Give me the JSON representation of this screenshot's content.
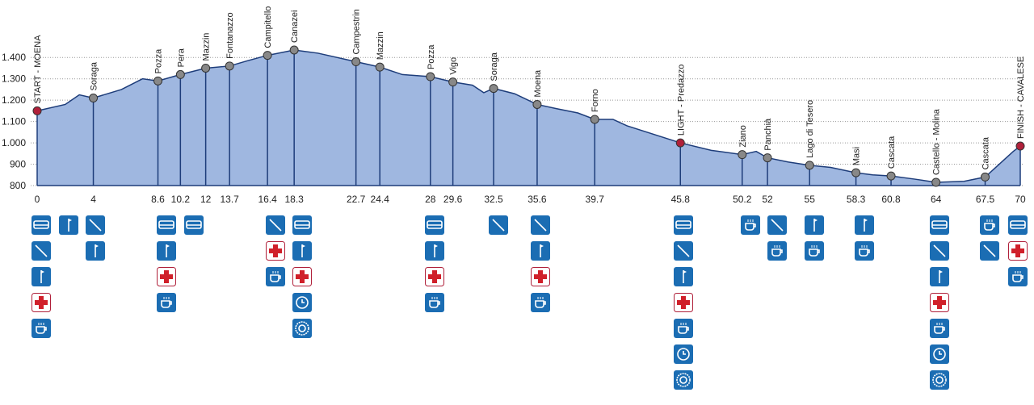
{
  "chart_data": {
    "type": "area",
    "color": "#9fb7e0",
    "line_color": "#1e3d7a",
    "grid": true,
    "xlim": [
      0,
      70
    ],
    "ylim": [
      800,
      1450
    ],
    "yticks": [
      800,
      900,
      {
        "value": 1000,
        "label": "1.000"
      },
      {
        "value": 1100,
        "label": "1.100"
      },
      {
        "value": 1200,
        "label": "1.200"
      },
      {
        "value": 1300,
        "label": "1.300"
      },
      {
        "value": 1400,
        "label": "1.400"
      }
    ],
    "x": [
      0,
      2,
      3,
      4,
      6,
      7.5,
      8.6,
      10.2,
      12,
      13.7,
      15,
      16.4,
      18.3,
      20,
      22.7,
      24.4,
      26,
      28,
      29.6,
      31,
      31.8,
      32.5,
      34,
      35.6,
      37,
      38.5,
      39.7,
      41,
      42,
      45.8,
      48,
      50.2,
      51.2,
      52,
      53.5,
      55,
      56.5,
      58.3,
      59.5,
      60.8,
      62.5,
      64,
      66,
      67.5,
      68.5,
      69.5,
      70
    ],
    "values": [
      1150,
      1180,
      1225,
      1210,
      1250,
      1300,
      1290,
      1320,
      1350,
      1360,
      1385,
      1410,
      1435,
      1420,
      1380,
      1355,
      1320,
      1310,
      1285,
      1270,
      1235,
      1255,
      1230,
      1180,
      1160,
      1140,
      1110,
      1110,
      1080,
      1000,
      965,
      945,
      960,
      930,
      910,
      895,
      885,
      860,
      850,
      845,
      830,
      815,
      820,
      840,
      900,
      960,
      985
    ],
    "stations": [
      {
        "name": "START - MOENA",
        "km": 0,
        "elevation": 1150,
        "color": "#b0203a"
      },
      {
        "name": "Soraga",
        "km": 4,
        "elevation": 1210,
        "color": "#888888"
      },
      {
        "name": "Pozza",
        "km": 8.6,
        "elevation": 1290,
        "color": "#888888"
      },
      {
        "name": "Pera",
        "km": 10.2,
        "elevation": 1320,
        "color": "#888888"
      },
      {
        "name": "Mazzin",
        "km": 12,
        "elevation": 1350,
        "color": "#888888"
      },
      {
        "name": "Fontanazzo",
        "km": 13.7,
        "elevation": 1360,
        "color": "#888888"
      },
      {
        "name": "Campitello",
        "km": 16.4,
        "elevation": 1410,
        "color": "#888888"
      },
      {
        "name": "Canazei",
        "km": 18.3,
        "elevation": 1435,
        "color": "#888888"
      },
      {
        "name": "Campestrin",
        "km": 22.7,
        "elevation": 1380,
        "color": "#888888"
      },
      {
        "name": "Mazzin",
        "km": 24.4,
        "elevation": 1355,
        "color": "#888888"
      },
      {
        "name": "Pozza",
        "km": 28,
        "elevation": 1310,
        "color": "#888888"
      },
      {
        "name": "Vigo",
        "km": 29.6,
        "elevation": 1285,
        "color": "#888888"
      },
      {
        "name": "Soraga",
        "km": 32.5,
        "elevation": 1255,
        "color": "#888888"
      },
      {
        "name": "Moena",
        "km": 35.6,
        "elevation": 1180,
        "color": "#888888"
      },
      {
        "name": "Forno",
        "km": 39.7,
        "elevation": 1110,
        "color": "#888888"
      },
      {
        "name": "LIGHT - Predazzo",
        "km": 45.8,
        "elevation": 1000,
        "color": "#b0203a"
      },
      {
        "name": "Ziano",
        "km": 50.2,
        "elevation": 945,
        "color": "#888888"
      },
      {
        "name": "Panchià",
        "km": 52,
        "elevation": 930,
        "color": "#888888"
      },
      {
        "name": "Lago di Tesero",
        "km": 55,
        "elevation": 895,
        "color": "#888888"
      },
      {
        "name": "Masi",
        "km": 58.3,
        "elevation": 860,
        "color": "#888888"
      },
      {
        "name": "Cascata",
        "km": 60.8,
        "elevation": 845,
        "color": "#888888"
      },
      {
        "name": "Castello - Molina",
        "km": 64,
        "elevation": 815,
        "color": "#888888"
      },
      {
        "name": "Cascata",
        "km": 67.5,
        "elevation": 840,
        "color": "#888888"
      },
      {
        "name": "FINISH - CAVALESE",
        "km": 70,
        "elevation": 985,
        "color": "#b0203a"
      }
    ]
  }
}
